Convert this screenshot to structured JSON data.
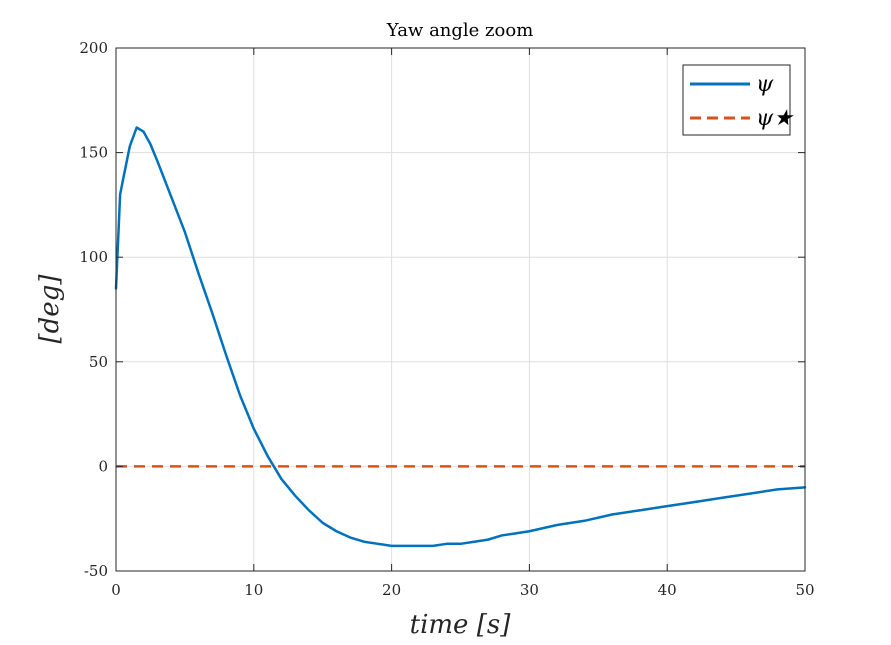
{
  "chart_data": {
    "type": "line",
    "title": "Yaw angle zoom",
    "xlabel": "time [s]",
    "ylabel": "[deg]",
    "xlim": [
      0,
      50
    ],
    "ylim": [
      -50,
      200
    ],
    "xticks": [
      0,
      10,
      20,
      30,
      40,
      50
    ],
    "yticks": [
      -50,
      0,
      50,
      100,
      150,
      200
    ],
    "grid": true,
    "legend_position": "top-right",
    "series": [
      {
        "name": "ψ",
        "color": "#0072BD",
        "style": "solid",
        "x": [
          0,
          0.3,
          0.6,
          1.0,
          1.5,
          2.0,
          2.5,
          3.0,
          4.0,
          5.0,
          6.0,
          7.0,
          8.0,
          9.0,
          10.0,
          11.0,
          12.0,
          13.0,
          14.0,
          15.0,
          16.0,
          17.0,
          18.0,
          19.0,
          20.0,
          21.0,
          22.0,
          23.0,
          24.0,
          25.0,
          26.0,
          27.0,
          28.0,
          29.0,
          30.0,
          32.0,
          34.0,
          36.0,
          38.0,
          40.0,
          42.0,
          44.0,
          46.0,
          48.0,
          50.0
        ],
        "y": [
          85,
          130,
          140,
          153,
          162,
          160,
          154,
          146,
          129,
          112,
          92,
          73,
          53,
          34,
          18,
          5,
          -6,
          -14,
          -21,
          -27,
          -31,
          -34,
          -36,
          -37,
          -38,
          -38,
          -38,
          -38,
          -37,
          -37,
          -36,
          -35,
          -33,
          -32,
          -31,
          -28,
          -26,
          -23,
          -21,
          -19,
          -17,
          -15,
          -13,
          -11,
          -10
        ]
      },
      {
        "name": "ψ★",
        "color": "#D95319",
        "style": "dashed",
        "x": [
          0,
          50
        ],
        "y": [
          0,
          0
        ]
      }
    ]
  }
}
